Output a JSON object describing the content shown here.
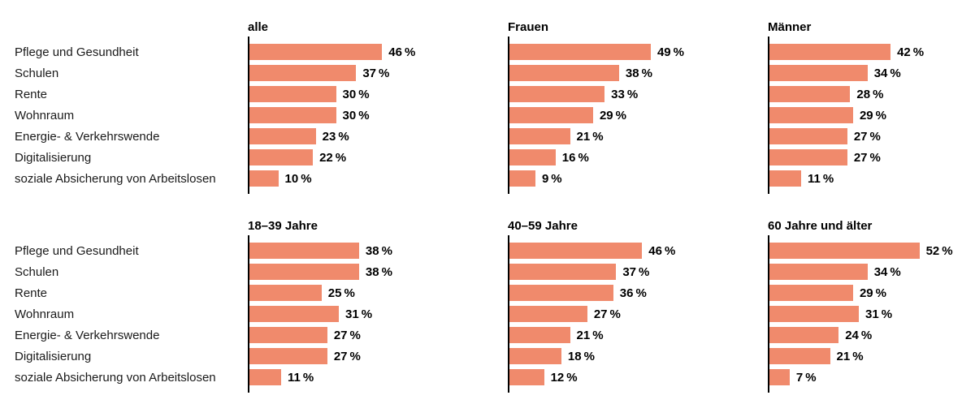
{
  "figure": {
    "background": "#ffffff"
  },
  "chart_data": {
    "type": "bar",
    "orientation": "horizontal",
    "categories": [
      "Pflege und Gesundheit",
      "Schulen",
      "Rente",
      "Wohnraum",
      "Energie- & Verkehrswende",
      "Digitalisierung",
      "soziale Absicherung von Arbeitslosen"
    ],
    "panels": [
      {
        "title": "alle",
        "values": [
          46,
          37,
          30,
          30,
          23,
          22,
          10
        ]
      },
      {
        "title": "Frauen",
        "values": [
          49,
          38,
          33,
          29,
          21,
          16,
          9
        ]
      },
      {
        "title": "Männer",
        "values": [
          42,
          34,
          28,
          29,
          27,
          27,
          11
        ]
      },
      {
        "title": "18–39 Jahre",
        "values": [
          38,
          38,
          25,
          31,
          27,
          27,
          11
        ]
      },
      {
        "title": "40–59 Jahre",
        "values": [
          46,
          37,
          36,
          27,
          21,
          18,
          12
        ]
      },
      {
        "title": "60 Jahre und älter",
        "values": [
          52,
          34,
          29,
          31,
          24,
          21,
          7
        ]
      }
    ],
    "grid_rows": [
      [
        0,
        1,
        2
      ],
      [
        3,
        4,
        5
      ]
    ],
    "value_suffix": " %",
    "xlim": [
      0,
      56
    ],
    "bar_color": "#F08A6C",
    "axis_color": "#000000",
    "text_color": "#1A1A1A",
    "gridlines": false,
    "legend": "none"
  }
}
